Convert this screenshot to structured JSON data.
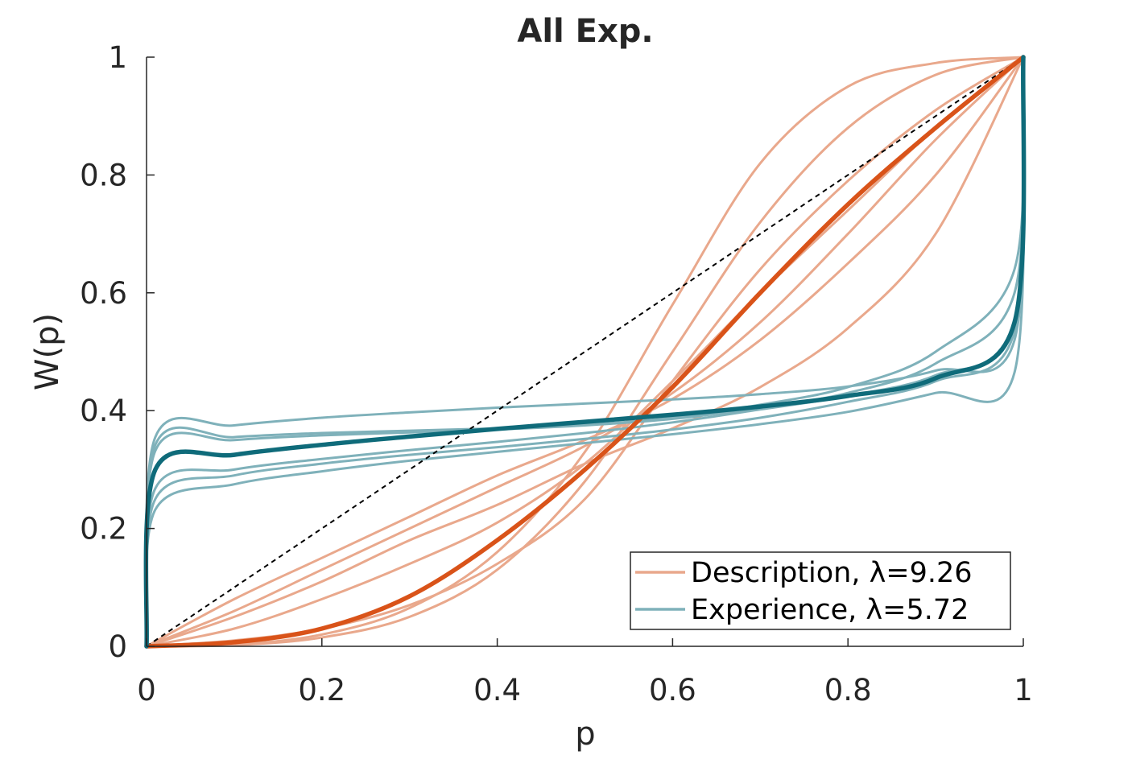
{
  "chart_data": {
    "type": "line",
    "title": "All Exp.",
    "xlabel": "p",
    "ylabel": "W(p)",
    "xlim": [
      0,
      1
    ],
    "ylim": [
      0,
      1
    ],
    "xticks": [
      "0",
      "0.2",
      "0.4",
      "0.6",
      "0.8",
      "1"
    ],
    "yticks": [
      "0",
      "0.2",
      "0.4",
      "0.6",
      "0.8",
      "1"
    ],
    "grid": false,
    "legend": {
      "placement": "bottom-right",
      "entries": [
        {
          "label": "Description, λ=9.26",
          "color": "#E9A88C"
        },
        {
          "label": "Experience, λ=5.72",
          "color": "#7FB1BA"
        }
      ]
    },
    "colors": {
      "description_light": "#E9A88C",
      "description_mean": "#D95319",
      "experience_light": "#7FB1BA",
      "experience_mean": "#0F6B7A",
      "identity": "#000000"
    },
    "reference_line": {
      "x": [
        0,
        1
      ],
      "y": [
        0,
        1
      ],
      "style": "dashed"
    },
    "series": [
      {
        "group": "Description",
        "role": "individual",
        "x": [
          0,
          0.1,
          0.2,
          0.3,
          0.4,
          0.5,
          0.6,
          0.7,
          0.8,
          0.9,
          1
        ],
        "y": [
          0,
          0.003,
          0.02,
          0.065,
          0.16,
          0.33,
          0.58,
          0.82,
          0.95,
          0.99,
          1
        ]
      },
      {
        "group": "Description",
        "role": "individual",
        "x": [
          0,
          0.1,
          0.2,
          0.3,
          0.4,
          0.5,
          0.6,
          0.7,
          0.8,
          0.9,
          1
        ],
        "y": [
          0,
          0.002,
          0.015,
          0.05,
          0.13,
          0.28,
          0.5,
          0.72,
          0.88,
          0.97,
          1
        ]
      },
      {
        "group": "Description",
        "role": "individual",
        "x": [
          0,
          0.1,
          0.2,
          0.3,
          0.4,
          0.5,
          0.6,
          0.7,
          0.8,
          0.9,
          1
        ],
        "y": [
          0,
          0.08,
          0.15,
          0.22,
          0.29,
          0.35,
          0.42,
          0.52,
          0.65,
          0.8,
          1
        ]
      },
      {
        "group": "Description",
        "role": "individual",
        "x": [
          0,
          0.1,
          0.2,
          0.3,
          0.4,
          0.5,
          0.6,
          0.7,
          0.8,
          0.9,
          1
        ],
        "y": [
          0,
          0.05,
          0.11,
          0.18,
          0.24,
          0.31,
          0.37,
          0.44,
          0.54,
          0.7,
          1
        ]
      },
      {
        "group": "Description",
        "role": "individual",
        "x": [
          0,
          0.1,
          0.2,
          0.3,
          0.4,
          0.5,
          0.6,
          0.7,
          0.8,
          0.9,
          1
        ],
        "y": [
          0,
          0.06,
          0.13,
          0.2,
          0.27,
          0.34,
          0.43,
          0.55,
          0.7,
          0.86,
          1
        ]
      },
      {
        "group": "Description",
        "role": "individual",
        "x": [
          0,
          0.1,
          0.2,
          0.3,
          0.4,
          0.5,
          0.6,
          0.7,
          0.8,
          0.9,
          1
        ],
        "y": [
          0,
          0.01,
          0.03,
          0.07,
          0.14,
          0.25,
          0.45,
          0.64,
          0.79,
          0.91,
          1
        ]
      },
      {
        "group": "Description",
        "role": "individual",
        "x": [
          0,
          0.1,
          0.2,
          0.3,
          0.4,
          0.5,
          0.6,
          0.7,
          0.8,
          0.9,
          1
        ],
        "y": [
          0,
          0.03,
          0.08,
          0.14,
          0.21,
          0.31,
          0.45,
          0.6,
          0.74,
          0.88,
          1
        ]
      },
      {
        "group": "Description",
        "role": "mean",
        "x": [
          0,
          0.1,
          0.2,
          0.3,
          0.4,
          0.5,
          0.6,
          0.7,
          0.8,
          0.9,
          1
        ],
        "y": [
          0,
          0.007,
          0.03,
          0.085,
          0.18,
          0.3,
          0.44,
          0.6,
          0.75,
          0.88,
          1
        ]
      },
      {
        "group": "Experience",
        "role": "individual",
        "x": [
          0,
          0.01,
          0.1,
          0.2,
          0.3,
          0.4,
          0.5,
          0.6,
          0.7,
          0.8,
          0.9,
          0.99,
          1
        ],
        "y": [
          0,
          0.355,
          0.375,
          0.388,
          0.397,
          0.405,
          0.412,
          0.419,
          0.428,
          0.441,
          0.468,
          0.52,
          1
        ]
      },
      {
        "group": "Experience",
        "role": "individual",
        "x": [
          0,
          0.01,
          0.1,
          0.2,
          0.3,
          0.4,
          0.5,
          0.6,
          0.7,
          0.8,
          0.9,
          0.99,
          1
        ],
        "y": [
          0,
          0.342,
          0.355,
          0.362,
          0.366,
          0.37,
          0.376,
          0.388,
          0.41,
          0.44,
          0.5,
          0.64,
          1
        ]
      },
      {
        "group": "Experience",
        "role": "individual",
        "x": [
          0,
          0.01,
          0.1,
          0.2,
          0.3,
          0.4,
          0.5,
          0.6,
          0.7,
          0.8,
          0.9,
          0.99,
          1
        ],
        "y": [
          0,
          0.332,
          0.35,
          0.358,
          0.363,
          0.368,
          0.375,
          0.386,
          0.405,
          0.43,
          0.48,
          0.6,
          1
        ]
      },
      {
        "group": "Experience",
        "role": "mean",
        "x": [
          0,
          0.01,
          0.1,
          0.2,
          0.3,
          0.4,
          0.5,
          0.6,
          0.7,
          0.8,
          0.9,
          0.99,
          1
        ],
        "y": [
          0,
          0.3,
          0.325,
          0.342,
          0.356,
          0.369,
          0.381,
          0.393,
          0.407,
          0.425,
          0.455,
          0.55,
          1
        ]
      },
      {
        "group": "Experience",
        "role": "individual",
        "x": [
          0,
          0.01,
          0.1,
          0.2,
          0.3,
          0.4,
          0.5,
          0.6,
          0.7,
          0.8,
          0.9,
          0.99,
          1
        ],
        "y": [
          0,
          0.268,
          0.3,
          0.318,
          0.333,
          0.347,
          0.362,
          0.38,
          0.402,
          0.425,
          0.46,
          0.545,
          1
        ]
      },
      {
        "group": "Experience",
        "role": "individual",
        "x": [
          0,
          0.01,
          0.1,
          0.2,
          0.3,
          0.4,
          0.5,
          0.6,
          0.7,
          0.8,
          0.9,
          0.99,
          1
        ],
        "y": [
          0,
          0.25,
          0.29,
          0.31,
          0.325,
          0.338,
          0.352,
          0.368,
          0.388,
          0.415,
          0.45,
          0.535,
          1
        ]
      },
      {
        "group": "Experience",
        "role": "individual",
        "x": [
          0,
          0.01,
          0.1,
          0.2,
          0.3,
          0.4,
          0.5,
          0.6,
          0.7,
          0.8,
          0.9,
          0.99,
          1
        ],
        "y": [
          0,
          0.232,
          0.275,
          0.297,
          0.315,
          0.33,
          0.345,
          0.36,
          0.377,
          0.398,
          0.43,
          0.465,
          1
        ]
      }
    ]
  }
}
